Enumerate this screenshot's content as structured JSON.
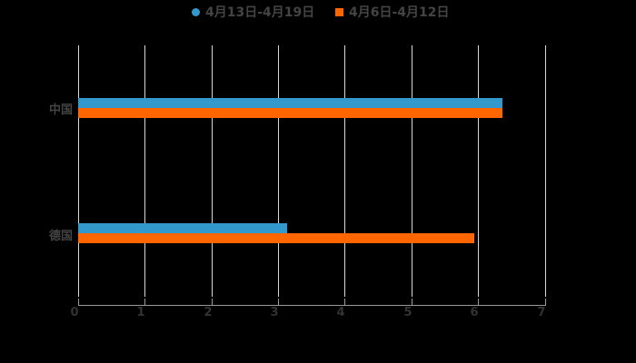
{
  "chart_data": {
    "type": "bar",
    "orientation": "horizontal",
    "title": "",
    "xlabel": "",
    "ylabel": "",
    "categories": [
      "中国",
      "德国"
    ],
    "series": [
      {
        "name": "4月13日-4月19日",
        "color": "#3399cc",
        "marker": "circle",
        "values": [
          6.36,
          3.13
        ]
      },
      {
        "name": "4月6日-4月12日",
        "color": "#ff6600",
        "marker": "square",
        "values": [
          6.36,
          5.94
        ]
      }
    ],
    "xlim": [
      0,
      7
    ],
    "xticks": [
      "0",
      "1",
      "2",
      "3",
      "4",
      "5",
      "6",
      "7"
    ],
    "grid": true,
    "legend_position": "top",
    "background": "#000000"
  },
  "legend": [
    {
      "label": "4月13日-4月19日",
      "color": "#3399cc"
    },
    {
      "label": "4月6日-4月12日",
      "color": "#ff6600"
    }
  ],
  "yaxis": {
    "labels": [
      "中国",
      "德国"
    ]
  },
  "xaxis": {
    "ticks": [
      "0",
      "1",
      "2",
      "3",
      "4",
      "5",
      "6",
      "7"
    ]
  }
}
